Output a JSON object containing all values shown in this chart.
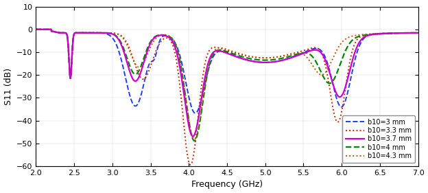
{
  "xlabel": "Frequency (GHz)",
  "ylabel": "S11 (dB)",
  "xlim": [
    2,
    7
  ],
  "ylim": [
    -60,
    10
  ],
  "yticks": [
    -60,
    -50,
    -40,
    -30,
    -20,
    -10,
    0,
    10
  ],
  "xticks": [
    2,
    2.5,
    3,
    3.5,
    4,
    4.5,
    5,
    5.5,
    6,
    6.5,
    7
  ],
  "legend_labels": [
    "b10=3 mm",
    "b10=3.3 mm",
    "b10=3.7 mm",
    "b10=4 mm",
    "b10=4.3 mm"
  ],
  "line_colors": [
    "#1E3EFF",
    "#CC2200",
    "#CC00CC",
    "#008800",
    "#BB5500"
  ],
  "line_styles": [
    "--",
    ":",
    "-",
    "--",
    ":"
  ],
  "line_widths": [
    1.4,
    1.4,
    1.6,
    1.6,
    1.4
  ],
  "background_color": "#ffffff"
}
